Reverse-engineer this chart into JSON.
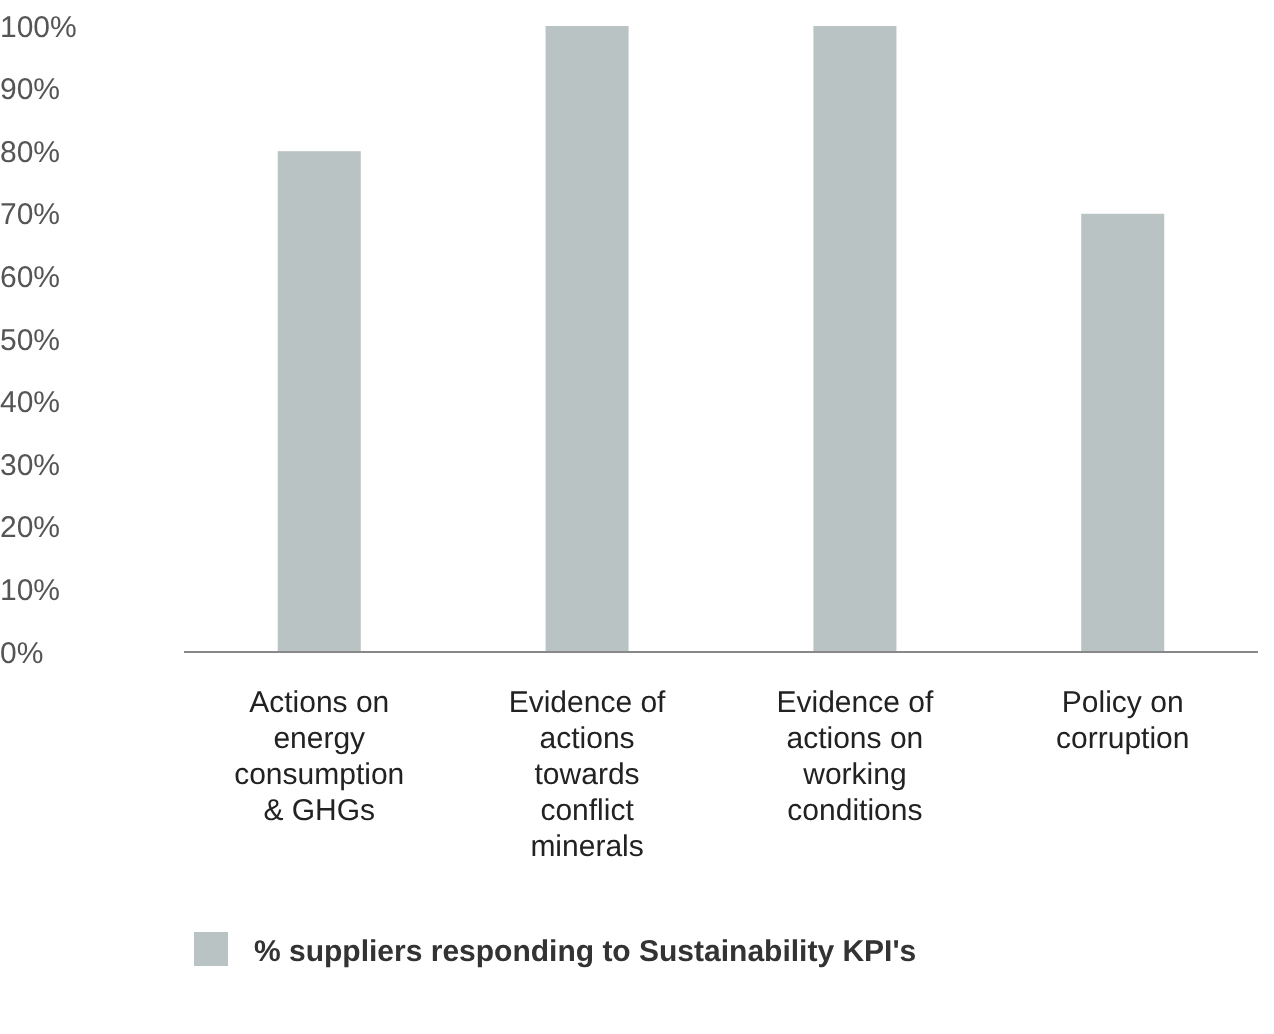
{
  "chart_data": {
    "type": "bar",
    "categories": [
      "Actions on energy consumption & GHGs",
      "Evidence of actions towards conflict minerals",
      "Evidence of actions on working conditions",
      "Policy on corruption"
    ],
    "series": [
      {
        "name": "% suppliers responding to Sustainability KPI's",
        "color": "#b9c3c3",
        "values": [
          80,
          100,
          100,
          70
        ]
      }
    ],
    "ylim": [
      0,
      100
    ],
    "yticks": [
      {
        "value": 0,
        "label": "0%"
      },
      {
        "value": 10,
        "label": "10%"
      },
      {
        "value": 20,
        "label": "20%"
      },
      {
        "value": 30,
        "label": "30%"
      },
      {
        "value": 40,
        "label": "40%"
      },
      {
        "value": 50,
        "label": "50%"
      },
      {
        "value": 60,
        "label": "60%"
      },
      {
        "value": 70,
        "label": "70%"
      },
      {
        "value": 80,
        "label": "80%"
      },
      {
        "value": 90,
        "label": "90%"
      },
      {
        "value": 100,
        "label": "100%"
      }
    ],
    "grid": false,
    "legend": "bottom"
  }
}
